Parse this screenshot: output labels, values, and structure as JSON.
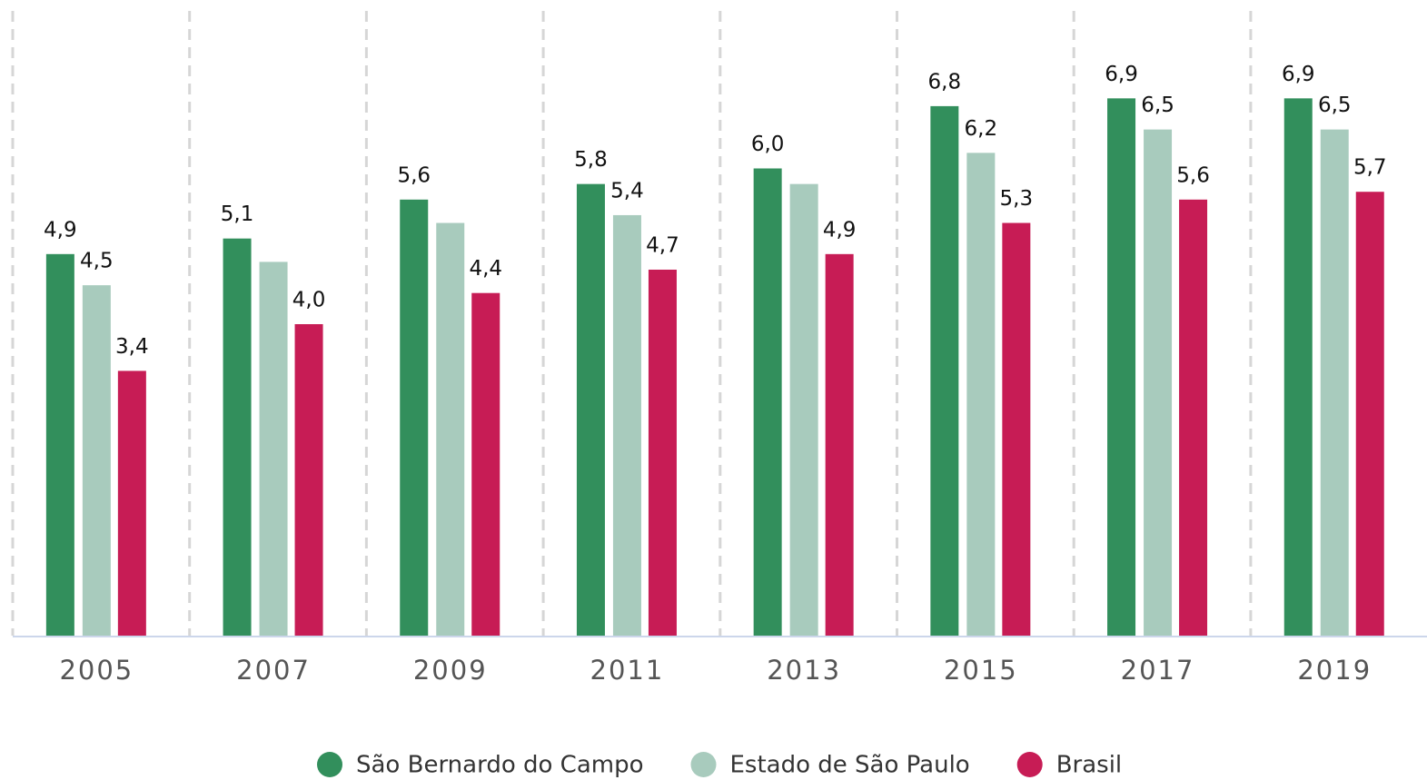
{
  "chart_data": {
    "type": "bar",
    "categories": [
      "2005",
      "2007",
      "2009",
      "2011",
      "2013",
      "2015",
      "2017",
      "2019"
    ],
    "series": [
      {
        "name": "São Bernardo do Campo",
        "color": "#328f5c",
        "values": [
          4.9,
          5.1,
          5.6,
          5.8,
          6.0,
          6.8,
          6.9,
          6.9
        ],
        "value_labels": [
          "4,9",
          "5,1",
          "5,6",
          "5,8",
          "6,0",
          "6,8",
          "6,9",
          "6,9"
        ]
      },
      {
        "name": "Estado de São Paulo",
        "color": "#a8cbbd",
        "values": [
          4.5,
          4.8,
          5.3,
          5.4,
          5.8,
          6.2,
          6.5,
          6.5
        ],
        "value_labels": [
          "4,5",
          null,
          null,
          "5,4",
          null,
          "6,2",
          "6,5",
          "6,5"
        ]
      },
      {
        "name": "Brasil",
        "color": "#c71c55",
        "values": [
          3.4,
          4.0,
          4.4,
          4.7,
          4.9,
          5.3,
          5.6,
          5.7
        ],
        "value_labels": [
          "3,4",
          "4,0",
          "4,4",
          "4,7",
          "4,9",
          "5,3",
          "5,6",
          "5,7"
        ]
      }
    ],
    "ylim": [
      0,
      8
    ],
    "legend": "bottom"
  }
}
